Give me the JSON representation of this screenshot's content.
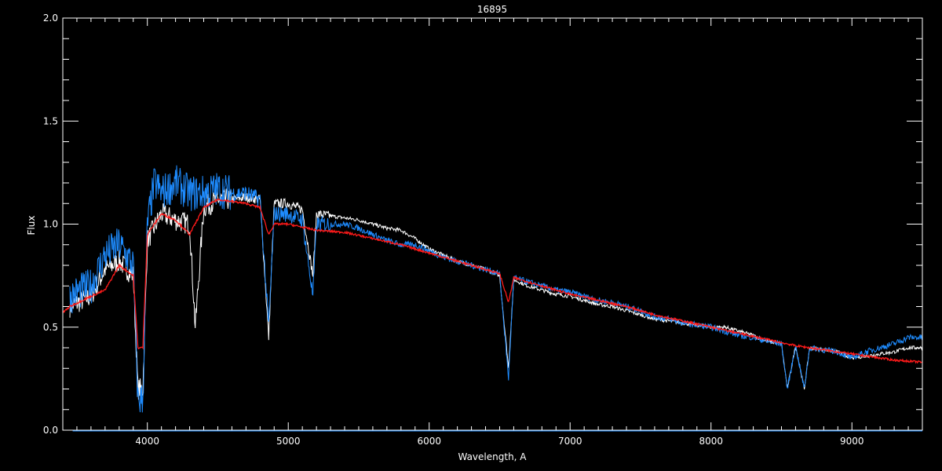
{
  "chart_data": {
    "type": "line",
    "title": "16895",
    "xlabel": "Wavelength, A",
    "ylabel": "Flux",
    "xlim": [
      3400,
      9500
    ],
    "ylim": [
      0.0,
      2.0
    ],
    "x_ticks": [
      4000,
      5000,
      6000,
      7000,
      8000,
      9000
    ],
    "y_ticks": [
      "0.0",
      "0.5",
      "1.0",
      "1.5",
      "2.0"
    ],
    "grid": false,
    "background": "#000000",
    "series": [
      {
        "color": "#ffffff",
        "x": [
          3450,
          3600,
          3700,
          3800,
          3900,
          3933,
          3968,
          4000,
          4100,
          4200,
          4300,
          4340,
          4400,
          4500,
          4600,
          4700,
          4800,
          4861,
          4900,
          5000,
          5100,
          5175,
          5200,
          5300,
          5400,
          5500,
          5600,
          5700,
          5800,
          5900,
          6000,
          6100,
          6200,
          6300,
          6400,
          6500,
          6563,
          6600,
          6700,
          6800,
          6900,
          7000,
          7100,
          7200,
          7300,
          7400,
          7500,
          7600,
          7700,
          7800,
          7900,
          8000,
          8100,
          8200,
          8300,
          8400,
          8500,
          8542,
          8600,
          8662,
          8700,
          8800,
          8900,
          9000,
          9100,
          9200,
          9300,
          9400,
          9500
        ],
        "y": [
          0.6,
          0.65,
          0.78,
          0.82,
          0.75,
          0.2,
          0.2,
          0.92,
          1.05,
          1.02,
          1.0,
          0.5,
          1.08,
          1.12,
          1.12,
          1.13,
          1.12,
          0.45,
          1.1,
          1.1,
          1.07,
          0.75,
          1.05,
          1.04,
          1.03,
          1.02,
          1.0,
          0.98,
          0.97,
          0.93,
          0.88,
          0.85,
          0.82,
          0.8,
          0.78,
          0.75,
          0.3,
          0.73,
          0.7,
          0.68,
          0.66,
          0.65,
          0.63,
          0.61,
          0.6,
          0.58,
          0.56,
          0.54,
          0.53,
          0.52,
          0.51,
          0.5,
          0.5,
          0.48,
          0.46,
          0.43,
          0.42,
          0.2,
          0.41,
          0.2,
          0.4,
          0.39,
          0.38,
          0.35,
          0.36,
          0.37,
          0.38,
          0.4,
          0.4
        ]
      },
      {
        "color": "#1e8cff",
        "x": [
          3450,
          3600,
          3700,
          3800,
          3900,
          3933,
          3968,
          4000,
          4050,
          4100,
          4200,
          4300,
          4400,
          4500,
          4600,
          4700,
          4800,
          4861,
          4900,
          5000,
          5100,
          5175,
          5200,
          5300,
          5400,
          5500,
          5600,
          5700,
          5800,
          5900,
          6000,
          6100,
          6200,
          6300,
          6400,
          6500,
          6563,
          6600,
          6700,
          6800,
          6900,
          7000,
          7100,
          7200,
          7300,
          7400,
          7500,
          7600,
          7700,
          7800,
          7900,
          8000,
          8100,
          8200,
          8300,
          8400,
          8500,
          8542,
          8600,
          8662,
          8700,
          8800,
          8900,
          9000,
          9100,
          9200,
          9300,
          9400,
          9500
        ],
        "y": [
          0.65,
          0.7,
          0.85,
          0.9,
          0.8,
          0.15,
          0.15,
          1.0,
          1.2,
          1.15,
          1.2,
          1.15,
          1.15,
          1.17,
          1.15,
          1.15,
          1.12,
          0.5,
          1.05,
          1.05,
          1.02,
          0.65,
          1.0,
          1.0,
          1.0,
          0.98,
          0.95,
          0.92,
          0.9,
          0.9,
          0.87,
          0.84,
          0.82,
          0.8,
          0.78,
          0.76,
          0.25,
          0.74,
          0.72,
          0.7,
          0.68,
          0.67,
          0.65,
          0.63,
          0.62,
          0.6,
          0.58,
          0.55,
          0.54,
          0.52,
          0.51,
          0.5,
          0.48,
          0.46,
          0.45,
          0.43,
          0.42,
          0.2,
          0.41,
          0.2,
          0.4,
          0.39,
          0.38,
          0.35,
          0.38,
          0.4,
          0.42,
          0.45,
          0.45
        ]
      },
      {
        "color": "#ff1a1a",
        "x": [
          3400,
          3450,
          3600,
          3700,
          3800,
          3900,
          3933,
          3968,
          4000,
          4100,
          4200,
          4300,
          4400,
          4500,
          4700,
          4800,
          4861,
          4900,
          5000,
          5200,
          5400,
          5600,
          5800,
          6000,
          6200,
          6400,
          6500,
          6563,
          6600,
          6800,
          7000,
          7200,
          7400,
          7600,
          7800,
          8000,
          8200,
          8400,
          8600,
          8800,
          9000,
          9100,
          9200,
          9300,
          9500
        ],
        "y": [
          0.57,
          0.6,
          0.65,
          0.68,
          0.8,
          0.75,
          0.4,
          0.4,
          0.95,
          1.05,
          1.02,
          0.95,
          1.08,
          1.12,
          1.1,
          1.08,
          0.95,
          1.0,
          1.0,
          0.97,
          0.96,
          0.93,
          0.9,
          0.86,
          0.82,
          0.78,
          0.76,
          0.62,
          0.74,
          0.7,
          0.66,
          0.63,
          0.6,
          0.56,
          0.53,
          0.5,
          0.47,
          0.44,
          0.41,
          0.39,
          0.37,
          0.36,
          0.35,
          0.34,
          0.33
        ]
      }
    ]
  }
}
